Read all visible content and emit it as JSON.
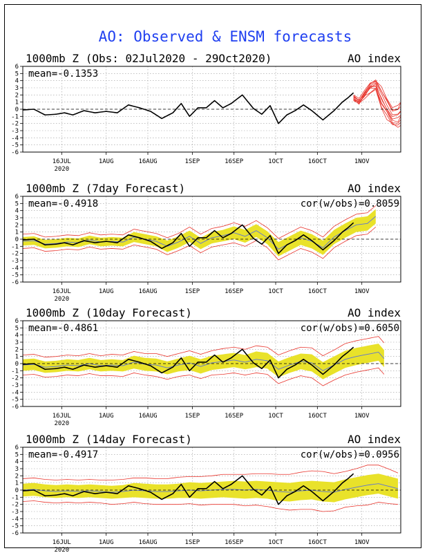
{
  "figure": {
    "title": "AO: Observed & ENSM forecasts",
    "colors": {
      "title": "#1f3ff0",
      "observed": "#000000",
      "ens_members": "#e8322a",
      "spread_band": "#e9e22a",
      "ens_mean": "#5b73d6",
      "zero_line": "#000000",
      "grid": "#9a9a9a"
    }
  },
  "chart_data": [
    {
      "type": "line",
      "title": "1000mb Z (Obs: 02Jul2020 - 29Oct2020)",
      "right_title": "AO index",
      "mean_label": "mean=-0.1353",
      "cor_label": "",
      "ylim": [
        -6,
        6
      ],
      "yticks": [
        "6",
        "5",
        "4",
        "3",
        "2",
        "1",
        "0",
        "-1",
        "-2",
        "-3",
        "-4",
        "-5",
        "-6"
      ],
      "xlim": [
        0,
        136
      ],
      "xticks": [
        {
          "day": 14,
          "label": "16JUL",
          "sub": "2020"
        },
        {
          "day": 30,
          "label": "1AUG"
        },
        {
          "day": 45,
          "label": "16AUG"
        },
        {
          "day": 61,
          "label": "1SEP"
        },
        {
          "day": 76,
          "label": "16SEP"
        },
        {
          "day": 91,
          "label": "1OCT"
        },
        {
          "day": 106,
          "label": "16OCT"
        },
        {
          "day": 122,
          "label": "1NOV"
        }
      ],
      "observed": {
        "days": [
          0,
          4,
          8,
          12,
          15,
          18,
          22,
          26,
          30,
          34,
          38,
          42,
          46,
          50,
          54,
          57,
          60,
          63,
          66,
          69,
          72,
          75,
          79,
          83,
          86,
          89,
          92,
          95,
          98,
          101,
          104,
          108,
          112,
          115,
          117,
          119
        ],
        "values": [
          -0.1,
          0.0,
          -0.8,
          -0.7,
          -0.5,
          -0.8,
          -0.2,
          -0.5,
          -0.3,
          -0.5,
          0.6,
          0.2,
          -0.3,
          -1.3,
          -0.5,
          0.8,
          -1.0,
          0.2,
          0.2,
          1.2,
          0.2,
          0.8,
          2.0,
          0.1,
          -0.7,
          0.5,
          -2.0,
          -0.8,
          -0.2,
          0.6,
          -0.2,
          -1.5,
          -0.2,
          1.0,
          1.6,
          2.3
        ]
      },
      "ensemble_forecast": {
        "days": [
          119,
          121,
          123,
          125,
          127,
          129,
          131,
          133,
          135,
          136
        ],
        "members_max": [
          2.0,
          1.6,
          2.6,
          3.7,
          4.2,
          2.9,
          1.5,
          0.0,
          0.5,
          1.0
        ],
        "members_min": [
          1.2,
          0.8,
          1.7,
          2.4,
          2.8,
          0.2,
          -1.2,
          -2.2,
          -2.6,
          -2.2
        ]
      }
    },
    {
      "type": "line",
      "title": "1000mb Z (7day Forecast)",
      "right_title": "AO index",
      "mean_label": "mean=-0.4918",
      "cor_label": "cor(w/obs)=0.8059",
      "ylim": [
        -6,
        6
      ],
      "yticks": [
        "6",
        "5",
        "4",
        "3",
        "2",
        "1",
        "0",
        "-1",
        "-2",
        "-3",
        "-4",
        "-5",
        "-6"
      ],
      "xlim": [
        0,
        136
      ],
      "xticks": [
        {
          "day": 14,
          "label": "16JUL",
          "sub": "2020"
        },
        {
          "day": 30,
          "label": "1AUG"
        },
        {
          "day": 45,
          "label": "16AUG"
        },
        {
          "day": 61,
          "label": "1SEP"
        },
        {
          "day": 76,
          "label": "16SEP"
        },
        {
          "day": 91,
          "label": "1OCT"
        },
        {
          "day": 106,
          "label": "16OCT"
        },
        {
          "day": 122,
          "label": "1NOV"
        }
      ],
      "observed": {
        "days": [
          0,
          4,
          8,
          12,
          15,
          18,
          22,
          26,
          30,
          34,
          38,
          42,
          46,
          50,
          54,
          57,
          60,
          63,
          66,
          69,
          72,
          75,
          79,
          83,
          86,
          89,
          92,
          95,
          98,
          101,
          104,
          108,
          112,
          115,
          117,
          119
        ],
        "values": [
          -0.1,
          0.0,
          -0.8,
          -0.7,
          -0.5,
          -0.8,
          -0.2,
          -0.5,
          -0.3,
          -0.5,
          0.6,
          0.2,
          -0.3,
          -1.3,
          -0.5,
          0.8,
          -1.0,
          0.2,
          0.2,
          1.2,
          0.2,
          0.8,
          2.0,
          0.1,
          -0.7,
          0.5,
          -2.0,
          -0.8,
          -0.2,
          0.6,
          -0.2,
          -1.5,
          -0.2,
          1.0,
          1.6,
          2.3
        ]
      },
      "forecast": {
        "days": [
          0,
          4,
          8,
          12,
          16,
          20,
          24,
          28,
          32,
          36,
          40,
          44,
          48,
          52,
          56,
          60,
          64,
          68,
          72,
          76,
          80,
          84,
          88,
          92,
          96,
          100,
          104,
          108,
          112,
          116,
          120,
          124,
          127
        ],
        "mean": [
          -0.3,
          -0.2,
          -0.7,
          -0.6,
          -0.4,
          -0.5,
          -0.1,
          -0.4,
          -0.3,
          -0.4,
          0.3,
          0.0,
          -0.3,
          -1.0,
          -0.4,
          0.4,
          -0.6,
          0.2,
          0.5,
          0.9,
          0.4,
          1.2,
          0.2,
          -1.4,
          -0.6,
          0.2,
          -0.3,
          -1.2,
          0.3,
          1.2,
          2.0,
          2.2,
          3.2
        ],
        "spread": [
          0.6,
          0.6,
          0.6,
          0.6,
          0.6,
          0.6,
          0.6,
          0.6,
          0.6,
          0.6,
          0.7,
          0.7,
          0.7,
          0.8,
          0.8,
          0.8,
          0.8,
          0.8,
          0.8,
          0.9,
          0.9,
          0.9,
          0.9,
          1.0,
          1.0,
          1.0,
          1.0,
          1.0,
          1.0,
          1.0,
          1.0,
          1.0,
          1.0
        ],
        "outer": [
          1.0,
          1.0,
          1.0,
          1.0,
          1.0,
          1.0,
          1.0,
          1.0,
          1.0,
          1.0,
          1.1,
          1.1,
          1.1,
          1.2,
          1.2,
          1.3,
          1.3,
          1.3,
          1.3,
          1.4,
          1.4,
          1.4,
          1.4,
          1.5,
          1.5,
          1.5,
          1.5,
          1.5,
          1.5,
          1.5,
          1.5,
          1.5,
          1.5
        ]
      }
    },
    {
      "type": "line",
      "title": "1000mb Z (10day Forecast)",
      "right_title": "AO index",
      "mean_label": "mean=-0.4861",
      "cor_label": "cor(w/obs)=0.6050",
      "ylim": [
        -6,
        6
      ],
      "yticks": [
        "6",
        "5",
        "4",
        "3",
        "2",
        "1",
        "0",
        "-1",
        "-2",
        "-3",
        "-4",
        "-5",
        "-6"
      ],
      "xlim": [
        0,
        136
      ],
      "xticks": [
        {
          "day": 14,
          "label": "16JUL",
          "sub": "2020"
        },
        {
          "day": 30,
          "label": "1AUG"
        },
        {
          "day": 45,
          "label": "16AUG"
        },
        {
          "day": 61,
          "label": "1SEP"
        },
        {
          "day": 76,
          "label": "16SEP"
        },
        {
          "day": 91,
          "label": "1OCT"
        },
        {
          "day": 106,
          "label": "16OCT"
        },
        {
          "day": 122,
          "label": "1NOV"
        }
      ],
      "observed": {
        "days": [
          0,
          4,
          8,
          12,
          15,
          18,
          22,
          26,
          30,
          34,
          38,
          42,
          46,
          50,
          54,
          57,
          60,
          63,
          66,
          69,
          72,
          75,
          79,
          83,
          86,
          89,
          92,
          95,
          98,
          101,
          104,
          108,
          112,
          115,
          117,
          119
        ],
        "values": [
          -0.1,
          0.0,
          -0.8,
          -0.7,
          -0.5,
          -0.8,
          -0.2,
          -0.5,
          -0.3,
          -0.5,
          0.6,
          0.2,
          -0.3,
          -1.3,
          -0.5,
          0.8,
          -1.0,
          0.2,
          0.2,
          1.2,
          0.2,
          0.8,
          2.0,
          0.1,
          -0.7,
          0.5,
          -2.0,
          -0.8,
          -0.2,
          0.6,
          -0.2,
          -1.5,
          -0.2,
          1.0,
          1.6,
          2.3
        ]
      },
      "forecast": {
        "days": [
          0,
          4,
          8,
          12,
          16,
          20,
          24,
          28,
          32,
          36,
          40,
          44,
          48,
          52,
          56,
          60,
          64,
          68,
          72,
          76,
          80,
          84,
          88,
          92,
          96,
          100,
          104,
          108,
          112,
          116,
          120,
          124,
          128,
          130
        ],
        "mean": [
          -0.2,
          -0.1,
          -0.5,
          -0.4,
          -0.2,
          -0.3,
          0.0,
          -0.3,
          -0.2,
          -0.3,
          0.2,
          -0.1,
          -0.2,
          -0.6,
          -0.2,
          0.1,
          -0.4,
          0.1,
          0.3,
          0.5,
          0.2,
          0.6,
          0.4,
          -0.8,
          -0.2,
          0.3,
          0.1,
          -1.0,
          -0.2,
          0.6,
          1.0,
          1.3,
          1.6,
          0.7
        ],
        "spread": [
          0.8,
          0.8,
          0.8,
          0.8,
          0.8,
          0.8,
          0.8,
          0.8,
          0.8,
          0.8,
          0.9,
          0.9,
          0.9,
          0.9,
          0.9,
          1.0,
          1.0,
          1.0,
          1.0,
          1.0,
          1.0,
          1.1,
          1.1,
          1.1,
          1.1,
          1.1,
          1.2,
          1.2,
          1.2,
          1.2,
          1.2,
          1.2,
          1.2,
          1.2
        ],
        "outer": [
          1.4,
          1.4,
          1.4,
          1.4,
          1.4,
          1.4,
          1.4,
          1.4,
          1.5,
          1.5,
          1.5,
          1.5,
          1.6,
          1.6,
          1.6,
          1.7,
          1.7,
          1.7,
          1.8,
          1.8,
          1.8,
          1.9,
          1.9,
          2.0,
          2.0,
          2.0,
          2.1,
          2.1,
          2.1,
          2.2,
          2.2,
          2.2,
          2.2,
          2.2
        ]
      }
    },
    {
      "type": "line",
      "title": "1000mb Z (14day Forecast)",
      "right_title": "AO index",
      "mean_label": "mean=-0.4917",
      "cor_label": "cor(w/obs)=0.0956",
      "ylim": [
        -6,
        6
      ],
      "yticks": [
        "6",
        "5",
        "4",
        "3",
        "2",
        "1",
        "0",
        "-1",
        "-2",
        "-3",
        "-4",
        "-5",
        "-6"
      ],
      "xlim": [
        0,
        136
      ],
      "xticks": [
        {
          "day": 14,
          "label": "16JUL",
          "sub": "2020"
        },
        {
          "day": 30,
          "label": "1AUG"
        },
        {
          "day": 45,
          "label": "16AUG"
        },
        {
          "day": 61,
          "label": "1SEP"
        },
        {
          "day": 76,
          "label": "16SEP"
        },
        {
          "day": 91,
          "label": "1OCT"
        },
        {
          "day": 106,
          "label": "16OCT"
        },
        {
          "day": 122,
          "label": "1NOV"
        }
      ],
      "observed": {
        "days": [
          0,
          4,
          8,
          12,
          15,
          18,
          22,
          26,
          30,
          34,
          38,
          42,
          46,
          50,
          54,
          57,
          60,
          63,
          66,
          69,
          72,
          75,
          79,
          83,
          86,
          89,
          92,
          95,
          98,
          101,
          104,
          108,
          112,
          115,
          117,
          119
        ],
        "values": [
          -0.1,
          0.0,
          -0.8,
          -0.7,
          -0.5,
          -0.8,
          -0.2,
          -0.5,
          -0.3,
          -0.5,
          0.6,
          0.2,
          -0.3,
          -1.3,
          -0.5,
          0.8,
          -1.0,
          0.2,
          0.2,
          1.2,
          0.2,
          0.8,
          2.0,
          0.1,
          -0.7,
          0.5,
          -2.0,
          -0.8,
          -0.2,
          0.6,
          -0.2,
          -1.5,
          -0.2,
          1.0,
          1.6,
          2.3
        ]
      },
      "forecast": {
        "days": [
          0,
          4,
          8,
          12,
          16,
          20,
          24,
          28,
          32,
          36,
          40,
          44,
          48,
          52,
          56,
          60,
          64,
          68,
          72,
          76,
          80,
          84,
          88,
          92,
          96,
          100,
          104,
          108,
          112,
          116,
          120,
          124,
          128,
          132,
          135
        ],
        "mean": [
          0.0,
          0.1,
          -0.1,
          -0.2,
          -0.1,
          -0.2,
          -0.1,
          -0.2,
          -0.3,
          -0.2,
          0.0,
          -0.1,
          -0.2,
          -0.2,
          -0.1,
          0.0,
          -0.1,
          0.0,
          0.1,
          0.1,
          0.0,
          0.1,
          0.0,
          -0.2,
          -0.3,
          -0.1,
          0.0,
          -0.2,
          -0.3,
          0.1,
          0.4,
          0.7,
          0.9,
          0.5,
          0.2
        ],
        "spread": [
          0.9,
          0.9,
          0.9,
          0.9,
          0.9,
          0.9,
          0.9,
          0.9,
          0.9,
          0.9,
          1.0,
          1.0,
          1.0,
          1.0,
          1.0,
          1.1,
          1.1,
          1.1,
          1.1,
          1.2,
          1.2,
          1.2,
          1.2,
          1.3,
          1.3,
          1.3,
          1.3,
          1.4,
          1.4,
          1.4,
          1.4,
          1.4,
          1.4,
          1.4,
          1.4
        ],
        "outer": [
          1.6,
          1.6,
          1.6,
          1.6,
          1.6,
          1.6,
          1.6,
          1.6,
          1.7,
          1.7,
          1.7,
          1.8,
          1.8,
          1.8,
          1.9,
          1.9,
          2.0,
          2.0,
          2.1,
          2.1,
          2.2,
          2.2,
          2.3,
          2.4,
          2.5,
          2.6,
          2.7,
          2.8,
          2.6,
          2.5,
          2.6,
          2.8,
          2.6,
          2.4,
          2.2
        ]
      }
    }
  ]
}
